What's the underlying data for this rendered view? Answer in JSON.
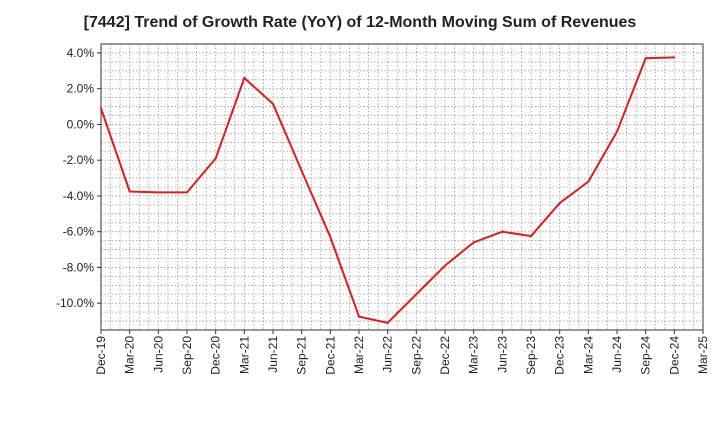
{
  "chart_data": {
    "type": "line",
    "title": "[7442]  Trend of Growth Rate (YoY) of 12-Month Moving Sum of Revenues",
    "xlabel": "",
    "ylabel": "",
    "x_ticks": [
      "Dec-19",
      "Mar-20",
      "Jun-20",
      "Sep-20",
      "Dec-20",
      "Mar-21",
      "Jun-21",
      "Sep-21",
      "Dec-21",
      "Mar-22",
      "Jun-22",
      "Sep-22",
      "Dec-22",
      "Mar-23",
      "Jun-23",
      "Sep-23",
      "Dec-23",
      "Mar-24",
      "Jun-24",
      "Sep-24",
      "Dec-24",
      "Mar-25"
    ],
    "y_ticks": [
      4.0,
      2.0,
      0.0,
      -2.0,
      -4.0,
      -6.0,
      -8.0,
      -10.0
    ],
    "y_tick_labels": [
      "4.0%",
      "2.0%",
      "0.0%",
      "-2.0%",
      "-4.0%",
      "-6.0%",
      "-8.0%",
      "-10.0%"
    ],
    "ylim": [
      -11.5,
      4.5
    ],
    "grid": true,
    "line_color": "#e31a1c",
    "series": [
      {
        "x": [
          "Dec-19",
          "Mar-20",
          "Jun-20",
          "Sep-20",
          "Dec-20",
          "Mar-21",
          "Jun-21",
          "Sep-21",
          "Dec-21",
          "Mar-22",
          "Jun-22",
          "Sep-22",
          "Dec-22",
          "Mar-23",
          "Jun-23",
          "Sep-23",
          "Dec-23",
          "Mar-24",
          "Jun-24",
          "Sep-24",
          "Dec-24"
        ],
        "values": [
          0.9,
          -3.75,
          -3.8,
          -3.8,
          -1.9,
          2.6,
          1.15,
          -2.6,
          -6.3,
          -10.75,
          -11.1,
          -9.5,
          -7.9,
          -6.6,
          -6.0,
          -6.25,
          -4.4,
          -3.2,
          -0.4,
          3.7,
          3.75
        ]
      }
    ]
  }
}
